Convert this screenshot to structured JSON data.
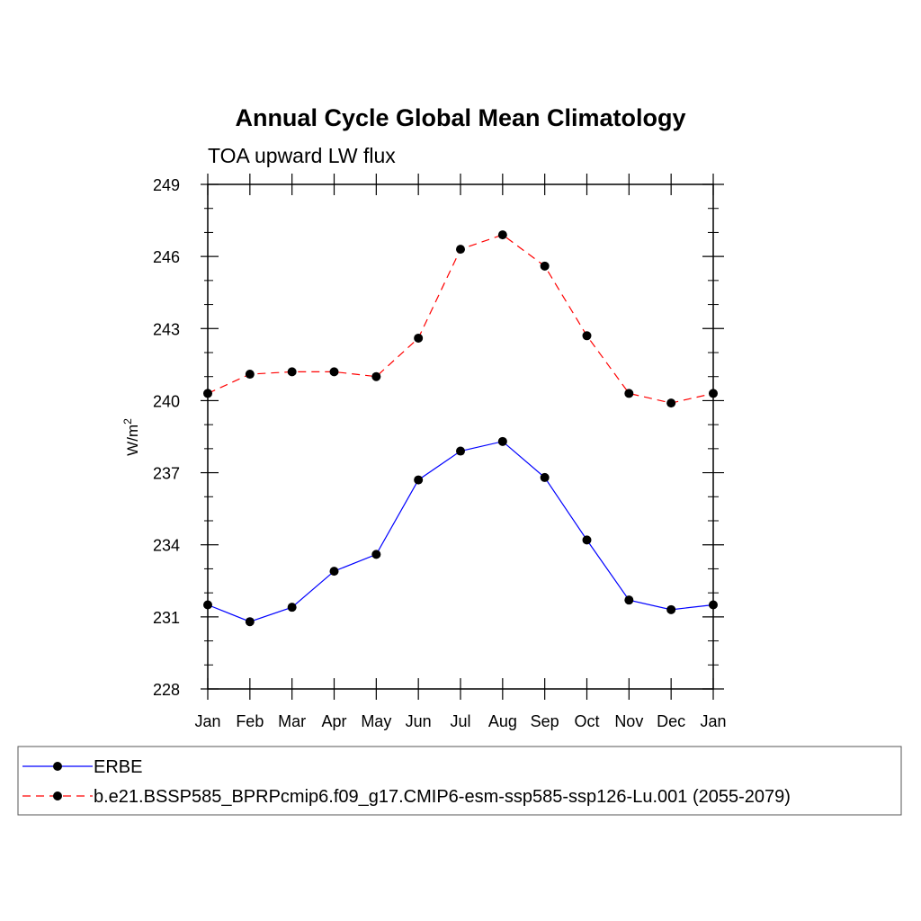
{
  "chart_data": {
    "type": "line",
    "title": "Annual Cycle Global Mean Climatology",
    "subtitle": "TOA upward LW flux",
    "ylabel": "W/m",
    "ylabel_superscript": "2",
    "xlabel": "",
    "categories": [
      "Jan",
      "Feb",
      "Mar",
      "Apr",
      "May",
      "Jun",
      "Jul",
      "Aug",
      "Sep",
      "Oct",
      "Nov",
      "Dec",
      "Jan"
    ],
    "ylim": [
      228,
      249
    ],
    "yticks": [
      228,
      231,
      234,
      237,
      240,
      243,
      246,
      249
    ],
    "y_minor_step": 1,
    "grid": false,
    "legend_position": "bottom",
    "series": [
      {
        "name": "ERBE",
        "color": "#0000ff",
        "dash": "solid",
        "marker": "filled-circle",
        "values": [
          231.5,
          230.8,
          231.4,
          232.9,
          233.6,
          236.7,
          237.9,
          238.3,
          236.8,
          234.2,
          231.7,
          231.3,
          231.5
        ]
      },
      {
        "name": "b.e21.BSSP585_BPRPcmip6.f09_g17.CMIP6-esm-ssp585-ssp126-Lu.001 (2055-2079)",
        "color": "#ff0000",
        "dash": "dashed",
        "marker": "filled-circle",
        "values": [
          240.3,
          241.1,
          241.2,
          241.2,
          241.0,
          242.6,
          246.3,
          246.9,
          245.6,
          242.7,
          240.3,
          239.9,
          240.3
        ]
      }
    ]
  }
}
